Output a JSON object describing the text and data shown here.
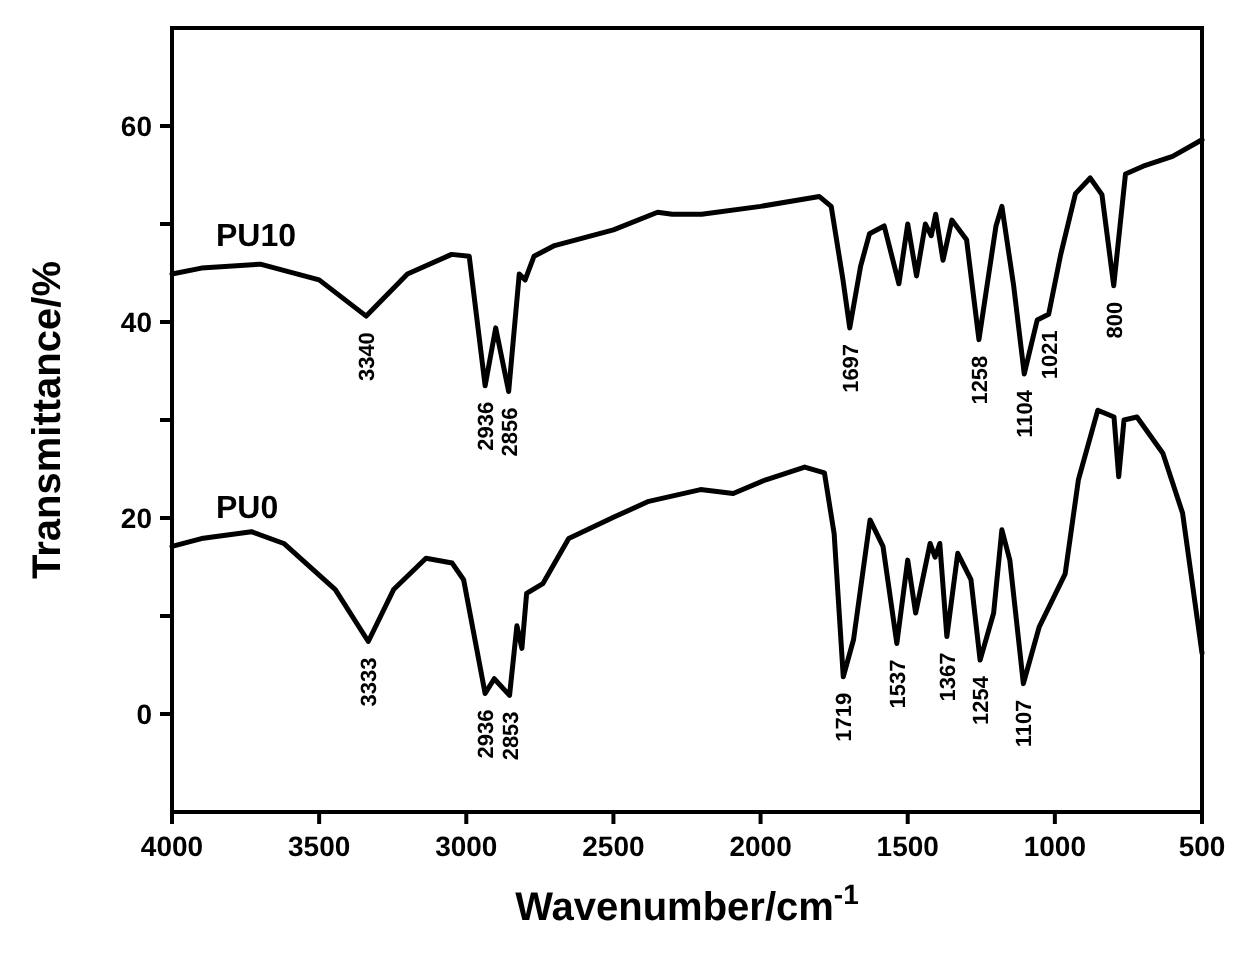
{
  "chart_data": {
    "type": "line",
    "xlabel": "Wavenumber/cm$^{-1}$",
    "ylabel": "Transmittance/%",
    "xlim": [
      4000,
      500
    ],
    "ylim": [
      -10,
      70
    ],
    "xticks": [
      4000,
      3500,
      3000,
      2500,
      2000,
      1500,
      1000,
      500
    ],
    "yticks": [
      0,
      {
        "value": 10,
        "label": null
      },
      20,
      {
        "value": 30,
        "label": null
      },
      40,
      {
        "value": 50,
        "label": null
      },
      60
    ],
    "legend": false,
    "grid": false,
    "marker": "none",
    "line_style": "solid",
    "series": [
      {
        "name": "PU10",
        "color": "#000000",
        "x": [
          4000,
          3900,
          3700,
          3500,
          3340,
          3200,
          3050,
          2990,
          2936,
          2900,
          2856,
          2820,
          2800,
          2770,
          2700,
          2500,
          2350,
          2300,
          2200,
          2000,
          1800,
          1760,
          1720,
          1697,
          1660,
          1630,
          1580,
          1530,
          1500,
          1470,
          1440,
          1420,
          1405,
          1380,
          1350,
          1300,
          1258,
          1200,
          1180,
          1140,
          1104,
          1060,
          1021,
          980,
          930,
          880,
          840,
          800,
          760,
          700,
          600,
          500
        ],
        "values": [
          44.9,
          45.5,
          45.9,
          44.3,
          40.6,
          44.9,
          46.9,
          46.7,
          33.5,
          39.4,
          32.9,
          44.9,
          44.3,
          46.7,
          47.8,
          49.4,
          51.2,
          51,
          51,
          51.8,
          52.8,
          51.8,
          44.3,
          39.4,
          45.7,
          49,
          49.8,
          43.9,
          50,
          44.7,
          50,
          48.8,
          51,
          46.3,
          50.4,
          48.4,
          38.2,
          49.8,
          51.8,
          43.7,
          34.7,
          40.2,
          40.8,
          46.9,
          53.1,
          54.7,
          53,
          43.7,
          55.1,
          55.9,
          56.9,
          58.6
        ]
      },
      {
        "name": "PU0",
        "color": "#000000",
        "x": [
          4000,
          3900,
          3730,
          3620,
          3445,
          3333,
          3247,
          3137,
          3048,
          3009,
          2936,
          2905,
          2853,
          2828,
          2811,
          2795,
          2740,
          2652,
          2498,
          2380,
          2204,
          2093,
          1982,
          1850,
          1783,
          1750,
          1719,
          1684,
          1628,
          1584,
          1537,
          1500,
          1473,
          1424,
          1407,
          1391,
          1367,
          1330,
          1285,
          1254,
          1208,
          1180,
          1153,
          1107,
          1053,
          965,
          920,
          854,
          799,
          783,
          765,
          721,
          633,
          566,
          500
        ],
        "values": [
          17.1,
          17.9,
          18.6,
          17.4,
          12.7,
          7.4,
          12.7,
          15.9,
          15.4,
          13.7,
          2.1,
          3.6,
          1.9,
          9,
          6.7,
          12.3,
          13.3,
          17.9,
          20.1,
          21.7,
          22.9,
          22.5,
          23.9,
          25.2,
          24.6,
          18.4,
          3.8,
          7.6,
          19.8,
          17.1,
          7.2,
          15.7,
          10.3,
          17.4,
          16,
          17.4,
          7.9,
          16.4,
          13.7,
          5.5,
          10.3,
          18.8,
          15.7,
          3.1,
          8.9,
          14.3,
          23.9,
          31,
          30.3,
          24.2,
          30,
          30.3,
          26.6,
          20.5,
          6.2
        ]
      }
    ],
    "annotations": [
      {
        "text": "3340",
        "x": 3340,
        "y": 40.6
      },
      {
        "text": "2936",
        "x": 2936,
        "y": 33.5
      },
      {
        "text": "2856",
        "x": 2856,
        "y": 32.9
      },
      {
        "text": "1697",
        "x": 1697,
        "y": 39.4
      },
      {
        "text": "1258",
        "x": 1258,
        "y": 38.2
      },
      {
        "text": "1104",
        "x": 1104,
        "y": 34.7
      },
      {
        "text": "1021",
        "x": 1021,
        "y": 40.8
      },
      {
        "text": "800",
        "x": 800,
        "y": 43.7
      },
      {
        "text": "3333",
        "x": 3333,
        "y": 7.4
      },
      {
        "text": "2936",
        "x": 2936,
        "y": 2.1
      },
      {
        "text": "2853",
        "x": 2853,
        "y": 1.9
      },
      {
        "text": "1719",
        "x": 1719,
        "y": 3.8
      },
      {
        "text": "1537",
        "x": 1537,
        "y": 7.2
      },
      {
        "text": "1367",
        "x": 1367,
        "y": 7.9
      },
      {
        "text": "1254",
        "x": 1254,
        "y": 5.5
      },
      {
        "text": "1107",
        "x": 1107,
        "y": 3.1
      }
    ]
  }
}
